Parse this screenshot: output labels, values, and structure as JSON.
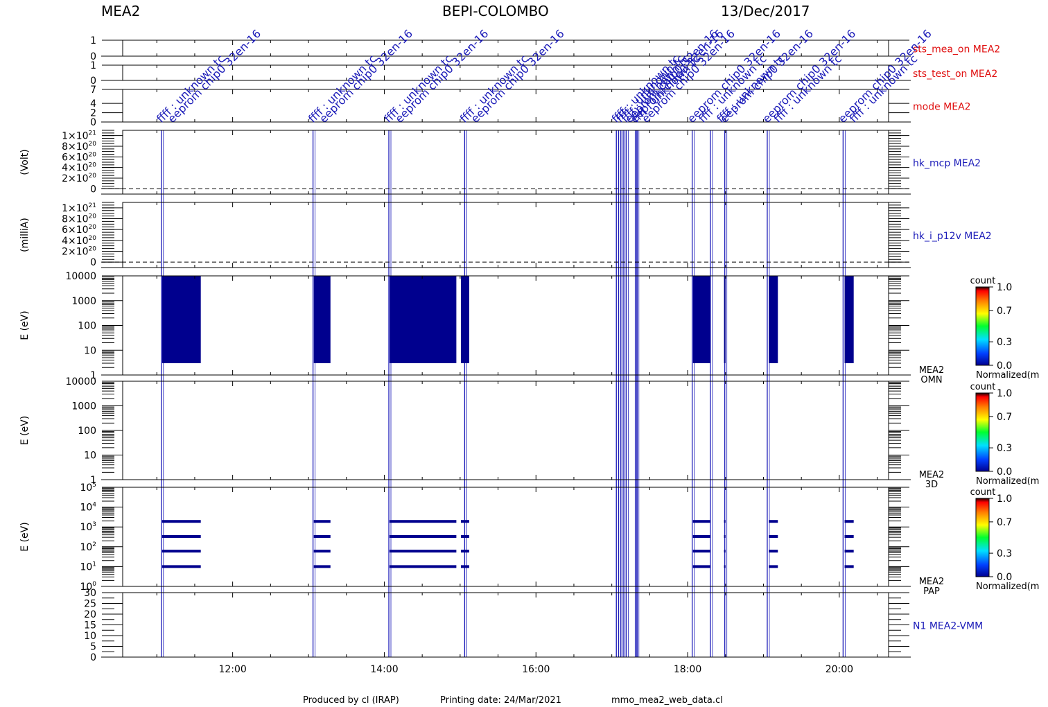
{
  "header": {
    "instrument": "MEA2",
    "mission": "BEPI-COLOMBO",
    "date": "13/Dec/2017"
  },
  "footer": {
    "produced_by": "Produced by cl (IRAP)",
    "printing_date": "Printing date: 24/Mar/2021",
    "script_name": "mmo_mea2_web_data.cl"
  },
  "colors": {
    "status_label": "#e01010",
    "data_label": "#1a1ab8",
    "event": "#1a1ab8",
    "spectrogram": "#00008e",
    "axis": "#000000"
  },
  "colorbars": [
    {
      "title": "count",
      "ticks": [
        "1.0",
        "0.7",
        "0.3",
        "0.0"
      ],
      "caption": "Normalized(m"
    },
    {
      "title": "count",
      "ticks": [
        "1.0",
        "0.7",
        "0.3",
        "0.0"
      ],
      "caption": "Normalized(m"
    },
    {
      "title": "count",
      "ticks": [
        "1.0",
        "0.7",
        "0.3",
        "0.0"
      ],
      "caption": "Normalized(m"
    }
  ],
  "chart_data": {
    "type": "heatmap",
    "time_axis": {
      "range_hours": [
        10.55,
        20.65
      ],
      "tick_hours": [
        12,
        14,
        16,
        18,
        20
      ],
      "tick_labels": [
        "12:00",
        "14:00",
        "16:00",
        "18:00",
        "20:00"
      ],
      "minor_step_hours": 0.5
    },
    "event_times_hours": [
      11.06,
      13.06,
      14.06,
      15.06,
      17.06,
      17.09,
      17.12,
      17.16,
      17.19,
      17.31,
      17.33,
      18.06,
      18.3,
      18.49,
      19.05,
      20.05
    ],
    "event_labels": [
      {
        "t": 11.06,
        "text": "ffff : unknown tc"
      },
      {
        "t": 11.06,
        "text": "eeprom chip0 32en-16"
      },
      {
        "t": 13.06,
        "text": "ffff : unknown tc"
      },
      {
        "t": 13.06,
        "text": "eeprom chip0 32en-16"
      },
      {
        "t": 14.06,
        "text": "ffff : unknown tc"
      },
      {
        "t": 14.06,
        "text": "eeprom chip0 32en-16"
      },
      {
        "t": 15.06,
        "text": "ffff : unknown tc"
      },
      {
        "t": 15.06,
        "text": "eeprom chip0 32en-16"
      },
      {
        "t": 17.06,
        "text": "ffff : unknown tc"
      },
      {
        "t": 17.09,
        "text": "eeprom chip0 32en-16"
      },
      {
        "t": 17.12,
        "text": "ffff : unknown tc"
      },
      {
        "t": 17.16,
        "text": "eeprom chip0 32en-16"
      },
      {
        "t": 17.19,
        "text": "ffff : unknown tc"
      },
      {
        "t": 17.31,
        "text": "eeprom chip0 32en-16"
      },
      {
        "t": 17.33,
        "text": "ffff : unknown tc"
      },
      {
        "t": 18.06,
        "text": "ffff : unknown tc"
      },
      {
        "t": 18.06,
        "text": "eeprom chip0 32en-16"
      },
      {
        "t": 18.3,
        "text": "ffff : unknown tc"
      },
      {
        "t": 18.49,
        "text": "eeprom chip0 32en-16"
      },
      {
        "t": 19.05,
        "text": "ffff : unknown tc"
      },
      {
        "t": 19.05,
        "text": "eeprom chip0 32en-16"
      },
      {
        "t": 20.05,
        "text": "ffff : unknown tc"
      },
      {
        "t": 20.05,
        "text": "eeprom chip0 32en-16"
      }
    ],
    "panels": [
      {
        "id": "sts_mea_on",
        "name": "sts_mea_on MEA2",
        "ylabel": "",
        "scale": "linear",
        "ylim": [
          0,
          1
        ],
        "ticks": [
          0,
          1
        ],
        "tick_labels": [
          "0",
          "1"
        ],
        "color": "status"
      },
      {
        "id": "sts_test_on",
        "name": "sts_test_on MEA2",
        "ylabel": "",
        "scale": "linear",
        "ylim": [
          0,
          1
        ],
        "ticks": [
          0,
          1
        ],
        "tick_labels": [
          "0",
          "1"
        ],
        "color": "status"
      },
      {
        "id": "mode",
        "name": "mode MEA2",
        "ylabel": "",
        "scale": "linear",
        "ylim": [
          0,
          7
        ],
        "ticks": [
          0,
          2,
          4,
          7
        ],
        "tick_labels": [
          "0",
          "2",
          "4",
          "7"
        ],
        "color": "status"
      },
      {
        "id": "hk_mcp",
        "name": "hk_mcp MEA2",
        "ylabel": "(Volt)",
        "scale": "linear",
        "ylim": [
          -1e+20,
          1.1e+21
        ],
        "ticks": [
          0,
          2e+20,
          4e+20,
          6e+20,
          8e+20,
          1e+21
        ],
        "tick_labels": [
          [
            "0",
            ""
          ],
          [
            "2×10",
            "20"
          ],
          [
            "4×10",
            "20"
          ],
          [
            "6×10",
            "20"
          ],
          [
            "8×10",
            "20"
          ],
          [
            "1×10",
            "21"
          ]
        ],
        "zero_line": true,
        "color": "data"
      },
      {
        "id": "hk_i_p12v",
        "name": "hk_i_p12v MEA2",
        "ylabel": "(milliA)",
        "scale": "linear",
        "ylim": [
          -1e+20,
          1.1e+21
        ],
        "ticks": [
          0,
          2e+20,
          4e+20,
          6e+20,
          8e+20,
          1e+21
        ],
        "tick_labels": [
          [
            "0",
            ""
          ],
          [
            "2×10",
            "20"
          ],
          [
            "4×10",
            "20"
          ],
          [
            "6×10",
            "20"
          ],
          [
            "8×10",
            "20"
          ],
          [
            "1×10",
            "21"
          ]
        ],
        "zero_line": true,
        "color": "data"
      },
      {
        "id": "omn",
        "name": "MEA2",
        "name2": "OMN",
        "ylabel": "E (eV)",
        "scale": "log",
        "ylim": [
          1,
          10000
        ],
        "ticks": [
          1,
          10,
          100,
          1000,
          10000
        ],
        "tick_labels": [
          "1",
          "10",
          "100",
          "1000",
          "10000"
        ],
        "color": "axis",
        "blocks": [
          [
            11.07,
            11.58,
            3,
            10000
          ],
          [
            13.07,
            13.29,
            3,
            10000
          ],
          [
            14.07,
            14.95,
            3,
            10000
          ],
          [
            15.01,
            15.12,
            3,
            10000
          ],
          [
            18.07,
            18.3,
            3,
            10000
          ],
          [
            18.48,
            18.5,
            3,
            10000
          ],
          [
            19.07,
            19.19,
            3,
            10000
          ],
          [
            20.07,
            20.19,
            3,
            10000
          ]
        ]
      },
      {
        "id": "3d",
        "name": "MEA2",
        "name2": "3D",
        "ylabel": "E (eV)",
        "scale": "log",
        "ylim": [
          1,
          10000
        ],
        "ticks": [
          1,
          10,
          100,
          1000,
          10000
        ],
        "tick_labels": [
          "1",
          "10",
          "100",
          "1000",
          "10000"
        ],
        "color": "axis",
        "blocks": []
      },
      {
        "id": "pap",
        "name": "MEA2",
        "name2": "PAP",
        "ylabel": "E (eV)",
        "scale": "log",
        "ylim": [
          1,
          100000
        ],
        "ticks": [
          1,
          10,
          100,
          1000,
          10000,
          100000
        ],
        "tick_labels": [
          [
            "10",
            "0"
          ],
          [
            "10",
            "1"
          ],
          [
            "10",
            "2"
          ],
          [
            "10",
            "3"
          ],
          [
            "10",
            "4"
          ],
          [
            "10",
            "5"
          ]
        ],
        "color": "axis",
        "band_energies": [
          10,
          60,
          330,
          1900
        ],
        "band_intervals": [
          [
            11.07,
            11.58
          ],
          [
            13.07,
            13.29
          ],
          [
            14.07,
            14.95
          ],
          [
            15.01,
            15.12
          ],
          [
            18.07,
            18.3
          ],
          [
            18.48,
            18.5
          ],
          [
            19.07,
            19.19
          ],
          [
            20.07,
            20.19
          ]
        ]
      },
      {
        "id": "vmm",
        "name": "N1 MEA2-VMM",
        "ylabel": "",
        "scale": "linear",
        "ylim": [
          0,
          30
        ],
        "ticks": [
          0,
          5,
          10,
          15,
          20,
          25,
          30
        ],
        "tick_labels": [
          "0",
          "5",
          "10",
          "15",
          "20",
          "25",
          "30"
        ],
        "color": "data"
      }
    ]
  }
}
